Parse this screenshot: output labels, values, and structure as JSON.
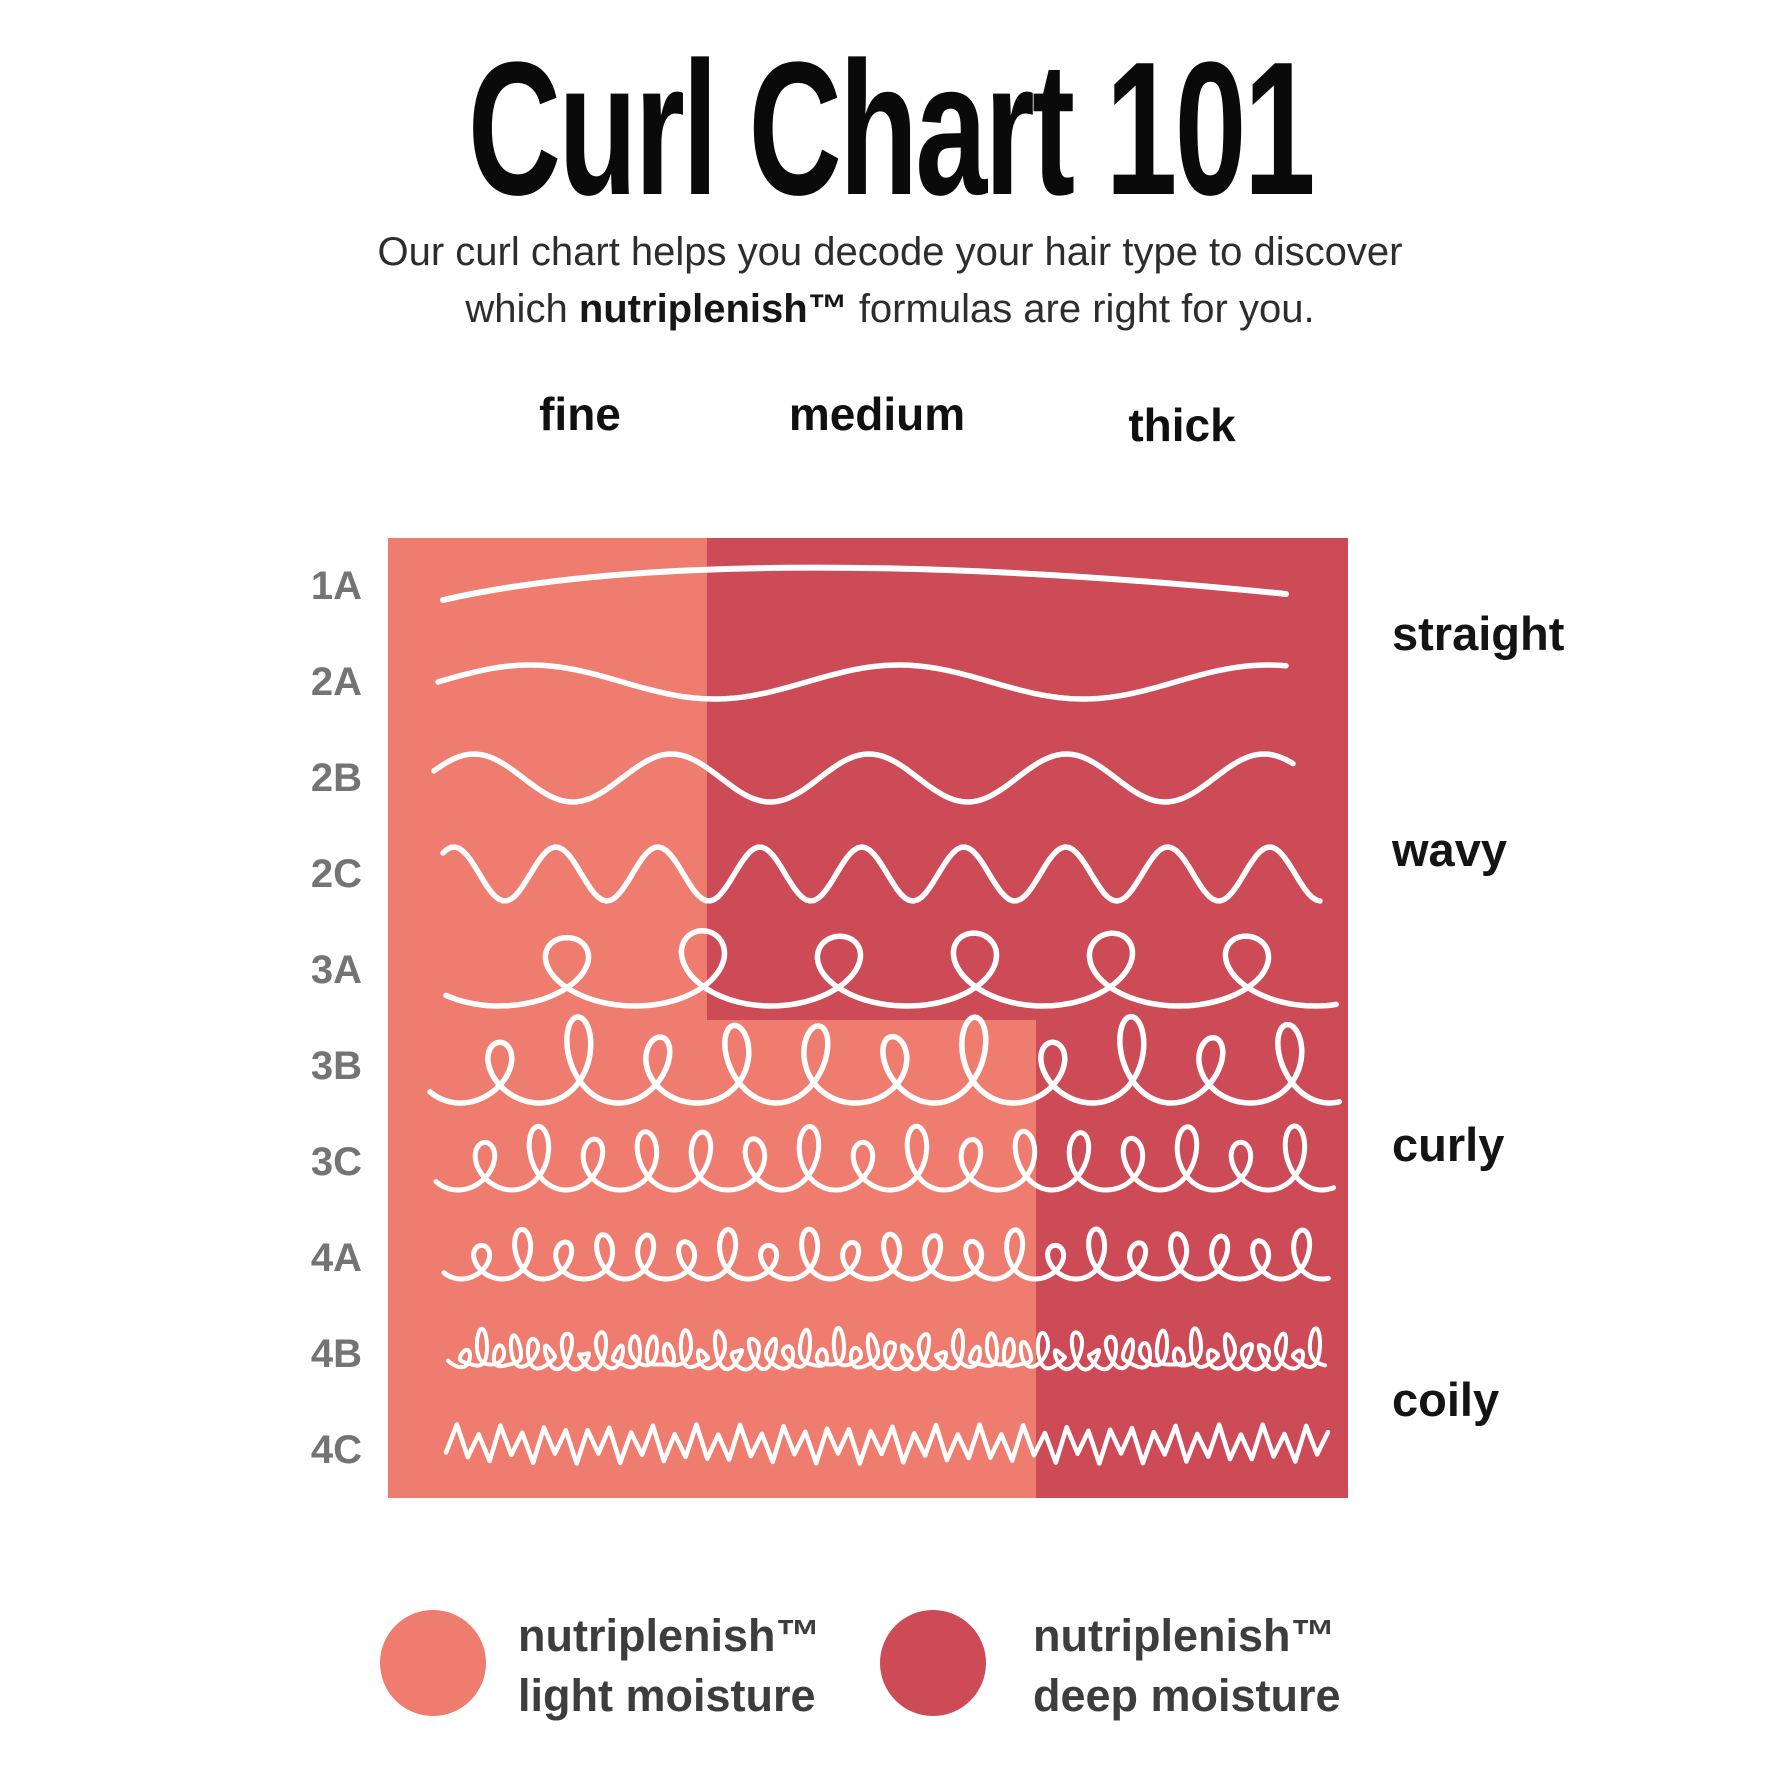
{
  "title": "Curl Chart 101",
  "subtitle": {
    "line1": "Our curl chart helps you decode your hair type to discover",
    "line2_prefix": "which ",
    "line2_bold": "nutriplenish™",
    "line2_suffix": " formulas are right for you."
  },
  "columns": [
    {
      "label": "fine"
    },
    {
      "label": "medium"
    },
    {
      "label": "thick"
    }
  ],
  "rows": [
    {
      "label": "1A",
      "curl_pattern": "straight-line"
    },
    {
      "label": "2A",
      "curl_pattern": "loose-wave"
    },
    {
      "label": "2B",
      "curl_pattern": "wave"
    },
    {
      "label": "2C",
      "curl_pattern": "tight-wave"
    },
    {
      "label": "3A",
      "curl_pattern": "loose-loops"
    },
    {
      "label": "3B",
      "curl_pattern": "loops"
    },
    {
      "label": "3C",
      "curl_pattern": "tight-loops"
    },
    {
      "label": "4A",
      "curl_pattern": "small-loops"
    },
    {
      "label": "4B",
      "curl_pattern": "dense-scribble"
    },
    {
      "label": "4C",
      "curl_pattern": "zigzag"
    }
  ],
  "hair_types": [
    {
      "label": "straight",
      "rows": [
        "1A",
        "2A"
      ]
    },
    {
      "label": "wavy",
      "rows": [
        "2B",
        "2C"
      ]
    },
    {
      "label": "curly",
      "rows": [
        "3A",
        "3B",
        "3C"
      ]
    },
    {
      "label": "coily",
      "rows": [
        "4A",
        "4B",
        "4C"
      ]
    }
  ],
  "regions": {
    "light": {
      "color": "#EE7D6F",
      "product": "nutriplenish™ light moisture"
    },
    "dark": {
      "color": "#CD4A57",
      "product": "nutriplenish™ deep moisture"
    }
  },
  "legend": [
    {
      "swatch_color": "#EE7D6F",
      "line1": "nutriplenish™",
      "line2": "light moisture"
    },
    {
      "swatch_color": "#CD4A57",
      "line1": "nutriplenish™",
      "line2": "deep moisture"
    }
  ],
  "chart_data": {
    "type": "heatmap",
    "title": "Curl Chart 101",
    "x_categories": [
      "fine",
      "medium",
      "thick"
    ],
    "y_categories": [
      "1A",
      "2A",
      "2B",
      "2C",
      "3A",
      "3B",
      "3C",
      "4A",
      "4B",
      "4C"
    ],
    "values": [
      [
        "light moisture",
        "deep moisture",
        "deep moisture"
      ],
      [
        "light moisture",
        "deep moisture",
        "deep moisture"
      ],
      [
        "light moisture",
        "deep moisture",
        "deep moisture"
      ],
      [
        "light moisture",
        "deep moisture",
        "deep moisture"
      ],
      [
        "light moisture",
        "deep moisture",
        "deep moisture"
      ],
      [
        "light moisture",
        "light moisture",
        "deep moisture"
      ],
      [
        "light moisture",
        "light moisture",
        "deep moisture"
      ],
      [
        "light moisture",
        "light moisture",
        "deep moisture"
      ],
      [
        "light moisture",
        "light moisture",
        "deep moisture"
      ],
      [
        "light moisture",
        "light moisture",
        "deep moisture"
      ]
    ],
    "legend": {
      "light moisture": {
        "label": "nutriplenish™ light moisture",
        "color": "#EE7D6F"
      },
      "deep moisture": {
        "label": "nutriplenish™ deep moisture",
        "color": "#CD4A57"
      }
    },
    "y_groups": [
      {
        "label": "straight",
        "rows": [
          "1A",
          "2A"
        ]
      },
      {
        "label": "wavy",
        "rows": [
          "2B",
          "2C"
        ]
      },
      {
        "label": "curly",
        "rows": [
          "3A",
          "3B",
          "3C"
        ]
      },
      {
        "label": "coily",
        "rows": [
          "4A",
          "4B",
          "4C"
        ]
      }
    ],
    "legend_position": "bottom",
    "grid": false
  }
}
